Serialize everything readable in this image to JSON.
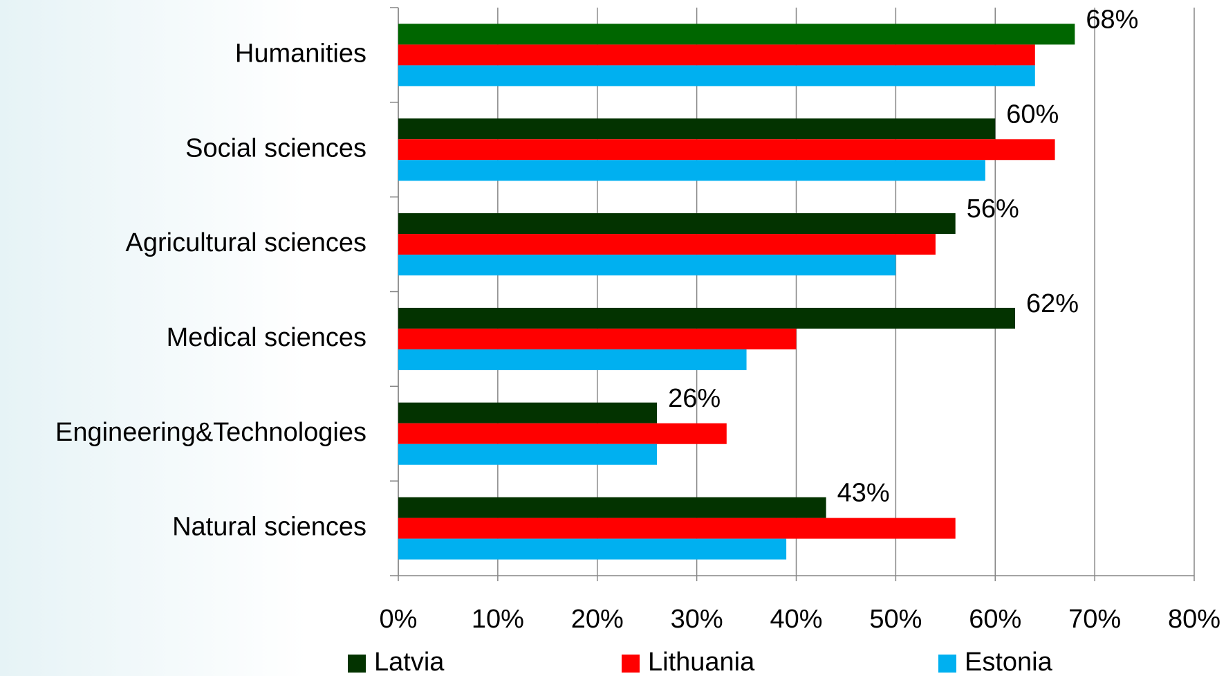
{
  "chart_data": {
    "type": "hbar",
    "categories": [
      "Humanities",
      "Social sciences",
      "Agricultural sciences",
      "Medical sciences",
      "Engineering&Technologies",
      "Natural sciences"
    ],
    "series": [
      {
        "name": "Latvia",
        "color": "#033300",
        "colors": [
          "#006600",
          "#033300",
          "#033300",
          "#033300",
          "#033300",
          "#033300"
        ],
        "values": [
          68,
          60,
          56,
          62,
          26,
          43
        ],
        "value_labels": [
          "68%",
          "60%",
          "56%",
          "62%",
          "26%",
          "43%"
        ]
      },
      {
        "name": "Lithuania",
        "color": "#ff0000",
        "values": [
          64,
          66,
          54,
          40,
          33,
          56
        ]
      },
      {
        "name": "Estonia",
        "color": "#00b0f0",
        "values": [
          64,
          59,
          50,
          35,
          26,
          39
        ]
      }
    ],
    "xlim": [
      0,
      80
    ],
    "xticks": [
      {
        "value": 0,
        "label": "0%"
      },
      {
        "value": 10,
        "label": "10%"
      },
      {
        "value": 20,
        "label": "20%"
      },
      {
        "value": 30,
        "label": "30%"
      },
      {
        "value": 40,
        "label": "40%"
      },
      {
        "value": 50,
        "label": "50%"
      },
      {
        "value": 60,
        "label": "60%"
      },
      {
        "value": 70,
        "label": "70%"
      },
      {
        "value": 80,
        "label": "80%"
      }
    ],
    "grid": true,
    "legend": "bottom"
  }
}
